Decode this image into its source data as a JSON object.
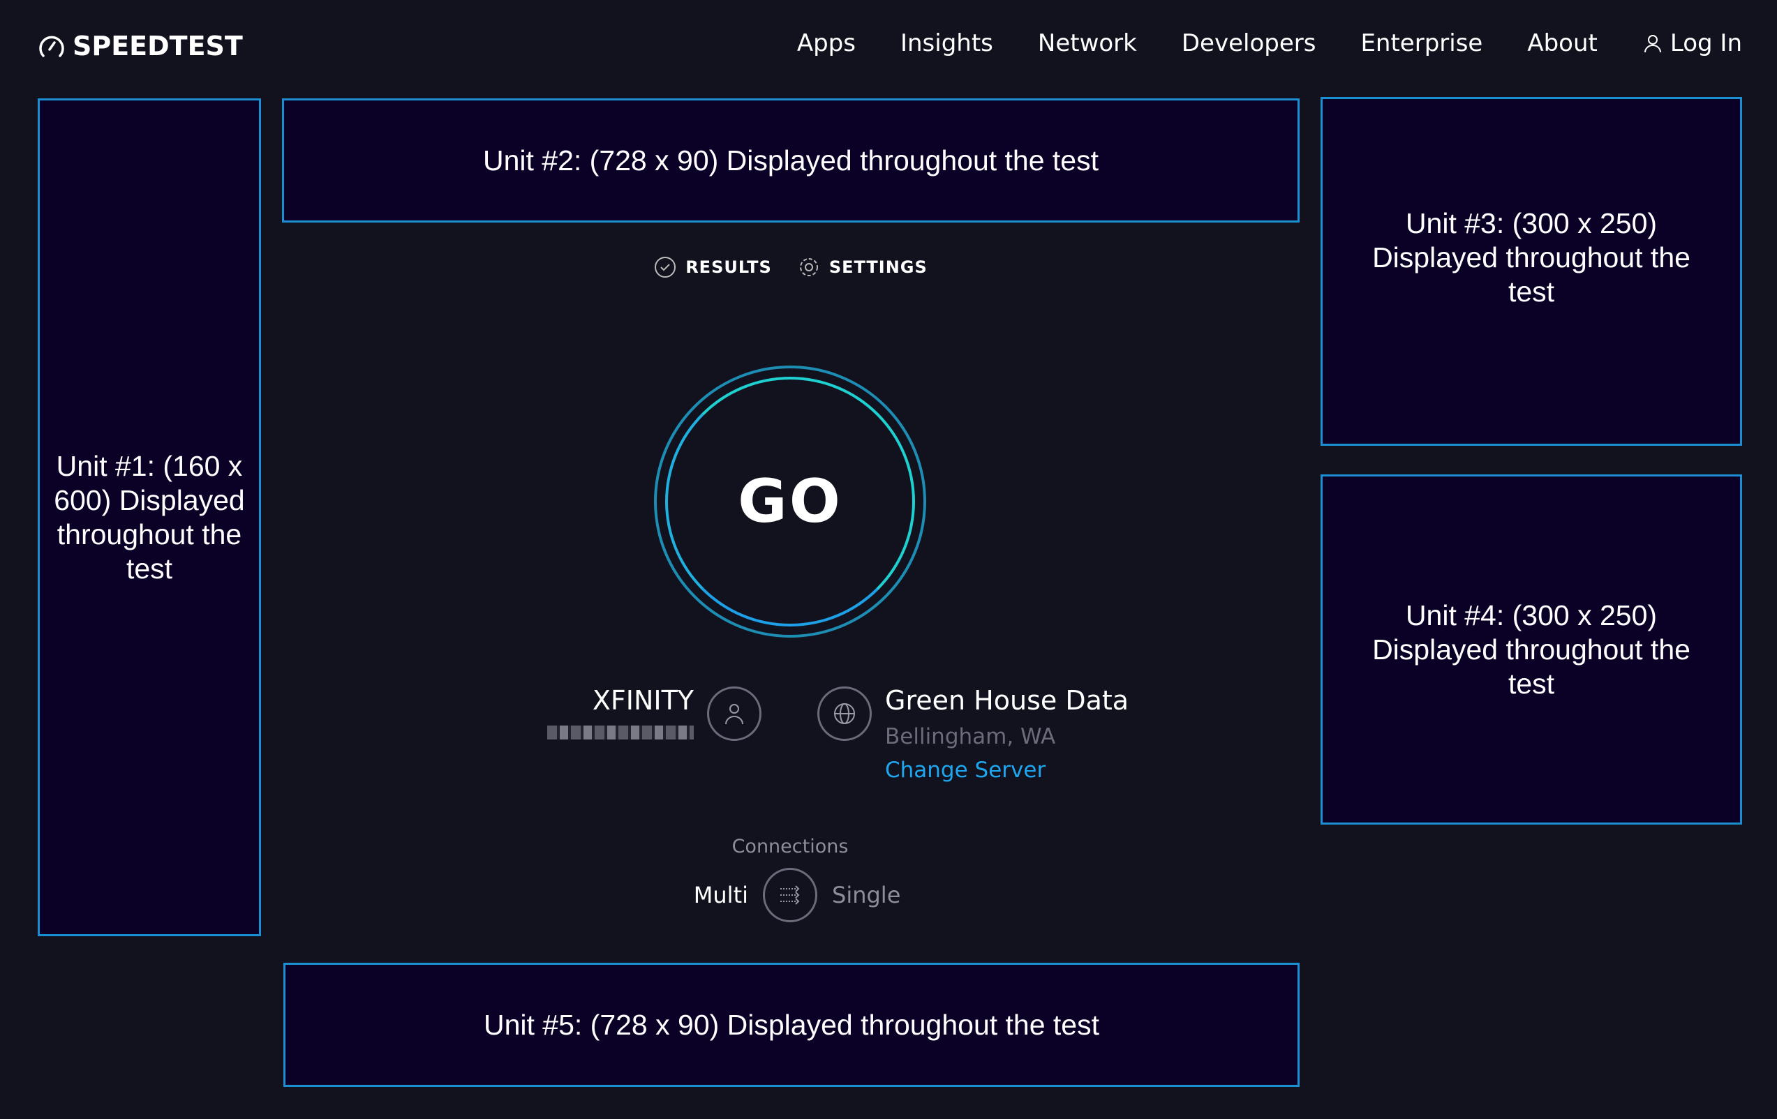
{
  "header": {
    "logo": "SPEEDTEST",
    "nav": [
      "Apps",
      "Insights",
      "Network",
      "Developers",
      "Enterprise",
      "About"
    ],
    "login": "Log In"
  },
  "ads": {
    "unit1": "Unit #1: (160 x 600) Displayed throughout the test",
    "unit2": "Unit #2: (728 x 90) Displayed throughout the test",
    "unit3": "Unit #3: (300 x 250) Displayed throughout the test",
    "unit4": "Unit #4: (300 x 250) Displayed throughout the test",
    "unit5": "Unit #5: (728 x 90) Displayed throughout the test"
  },
  "tabs": {
    "results": "RESULTS",
    "settings": "SETTINGS"
  },
  "go": "GO",
  "isp": {
    "name": "XFINITY"
  },
  "server": {
    "name": "Green House Data",
    "location": "Bellingham, WA",
    "change": "Change Server"
  },
  "connections": {
    "label": "Connections",
    "multi": "Multi",
    "single": "Single"
  },
  "colors": {
    "background": "#11121d",
    "ad_fill": "#0b0127",
    "ad_border": "#1b8fd2",
    "link": "#1ea7f0",
    "ring": "#1fd0d0"
  }
}
